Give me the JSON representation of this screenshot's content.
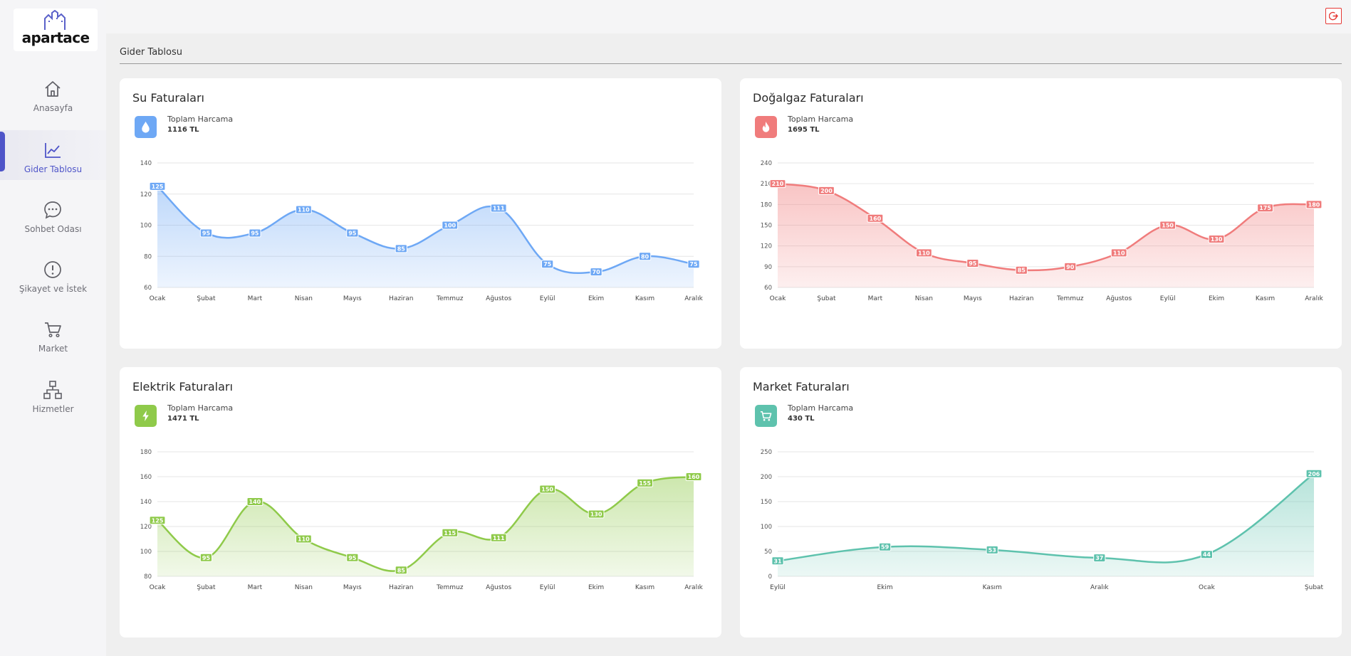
{
  "app": {
    "name": "apartace"
  },
  "sidebar": {
    "items": [
      {
        "label": "Anasayfa",
        "icon": "home-icon",
        "active": false
      },
      {
        "label": "Gider Tablosu",
        "icon": "chart-line-icon",
        "active": true
      },
      {
        "label": "Sohbet Odası",
        "icon": "chat-icon",
        "active": false
      },
      {
        "label": "Şikayet ve İstek",
        "icon": "alert-circle-icon",
        "active": false
      },
      {
        "label": "Market",
        "icon": "cart-icon",
        "active": false
      },
      {
        "label": "Hizmetler",
        "icon": "sitemap-icon",
        "active": false
      }
    ]
  },
  "header": {
    "logout_icon": "logout-icon"
  },
  "page": {
    "title": "Gider Tablosu"
  },
  "cards": [
    {
      "title": "Su Faturaları",
      "subtitle": "Toplam Harcama",
      "total": "1116 TL",
      "color": "#6ea8f5",
      "icon": "water-drop-icon"
    },
    {
      "title": "Doğalgaz Faturaları",
      "subtitle": "Toplam Harcama",
      "total": "1695 TL",
      "color": "#f07c7c",
      "icon": "flame-icon"
    },
    {
      "title": "Elektrik Faturaları",
      "subtitle": "Toplam Harcama",
      "total": "1471 TL",
      "color": "#8fca4a",
      "icon": "lightning-icon"
    },
    {
      "title": "Market Faturaları",
      "subtitle": "Toplam Harcama",
      "total": "430 TL",
      "color": "#5ec2ad",
      "icon": "cart-icon"
    }
  ],
  "chart_data": [
    {
      "type": "area",
      "title": "Su Faturaları",
      "color": "#6ea8f5",
      "categories": [
        "Ocak",
        "Şubat",
        "Mart",
        "Nisan",
        "Mayıs",
        "Haziran",
        "Temmuz",
        "Ağustos",
        "Eylül",
        "Ekim",
        "Kasım",
        "Aralık"
      ],
      "values": [
        125,
        95,
        95,
        110,
        95,
        85,
        100,
        111,
        75,
        70,
        80,
        75
      ],
      "ylim": [
        60,
        140
      ],
      "yticks": [
        60,
        80,
        100,
        120,
        140
      ]
    },
    {
      "type": "area",
      "title": "Doğalgaz Faturaları",
      "color": "#f07c7c",
      "categories": [
        "Ocak",
        "Şubat",
        "Mart",
        "Nisan",
        "Mayıs",
        "Haziran",
        "Temmuz",
        "Ağustos",
        "Eylül",
        "Ekim",
        "Kasım",
        "Aralık"
      ],
      "values": [
        210,
        200,
        160,
        110,
        95,
        85,
        90,
        110,
        150,
        130,
        175,
        180
      ],
      "ylim": [
        60,
        240
      ],
      "yticks": [
        60,
        90,
        120,
        150,
        180,
        210,
        240
      ]
    },
    {
      "type": "area",
      "title": "Elektrik Faturaları",
      "color": "#8fca4a",
      "categories": [
        "Ocak",
        "Şubat",
        "Mart",
        "Nisan",
        "Mayıs",
        "Haziran",
        "Temmuz",
        "Ağustos",
        "Eylül",
        "Ekim",
        "Kasım",
        "Aralık"
      ],
      "values": [
        125,
        95,
        140,
        110,
        95,
        85,
        115,
        111,
        150,
        130,
        155,
        160
      ],
      "ylim": [
        80,
        180
      ],
      "yticks": [
        80,
        100,
        120,
        140,
        160,
        180
      ]
    },
    {
      "type": "area",
      "title": "Market Faturaları",
      "color": "#5ec2ad",
      "categories": [
        "Eylül",
        "Ekim",
        "Kasım",
        "Aralık",
        "Ocak",
        "Şubat"
      ],
      "values": [
        31,
        59,
        53,
        37,
        44,
        206
      ],
      "ylim": [
        0,
        250
      ],
      "yticks": [
        0,
        50,
        100,
        150,
        200,
        250
      ]
    }
  ]
}
